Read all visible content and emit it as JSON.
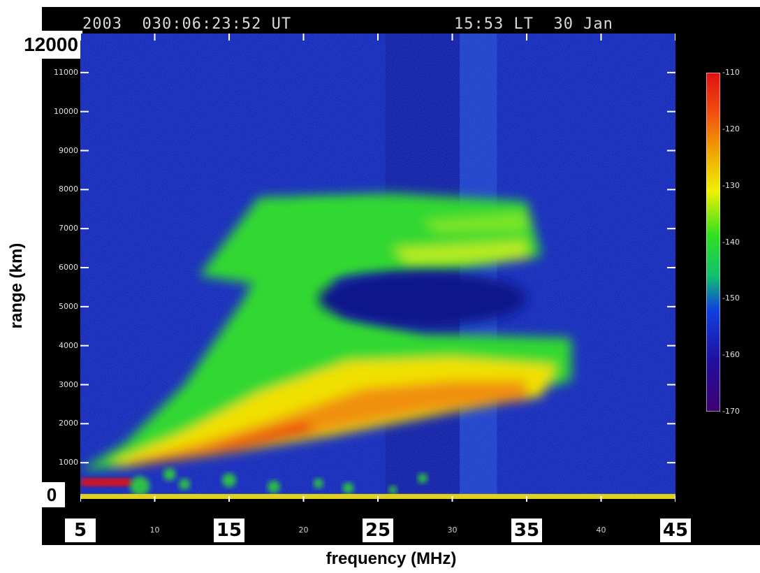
{
  "header": {
    "left": "2003  030:06:23:52 UT",
    "right": "15:53 LT  30 Jan"
  },
  "chart_data": {
    "type": "heatmap",
    "title": "",
    "xlabel": "frequency (MHz)",
    "ylabel": "range (km)",
    "xlim": [
      5,
      45
    ],
    "ylim": [
      0,
      12000
    ],
    "x_ticks": [
      5,
      10,
      15,
      20,
      25,
      30,
      35,
      40,
      45
    ],
    "y_ticks": [
      1000,
      2000,
      3000,
      4000,
      5000,
      6000,
      7000,
      8000,
      9000,
      10000,
      11000
    ],
    "y_label_top": "12000",
    "y_label_bottom": "0",
    "colorbar": {
      "range": [
        -170,
        -110
      ],
      "ticks": [
        -110,
        -120,
        -130,
        -140,
        -150,
        -160,
        -170
      ]
    },
    "features": [
      {
        "name": "ground-scatter band",
        "range_km": [
          0,
          200
        ],
        "freq_mhz": [
          5,
          45
        ],
        "level_db": -128
      },
      {
        "name": "strong near-vertical echo",
        "range_km": [
          400,
          600
        ],
        "freq_mhz": [
          5,
          9
        ],
        "level_db": -112
      },
      {
        "name": "lower oblique echo fan",
        "range_km": [
          700,
          4200
        ],
        "freq_mhz": [
          5,
          38
        ],
        "level_db": -118
      },
      {
        "name": "upper oblique echo fan",
        "range_km": [
          6000,
          7800
        ],
        "freq_mhz": [
          13,
          35
        ],
        "level_db": -135
      }
    ]
  },
  "colors": {
    "background": "#0a1fb0",
    "frame": "#000000",
    "strong": "#e81010",
    "medium": "#f0e000",
    "weak": "#30d830",
    "band": "#e0d020"
  }
}
